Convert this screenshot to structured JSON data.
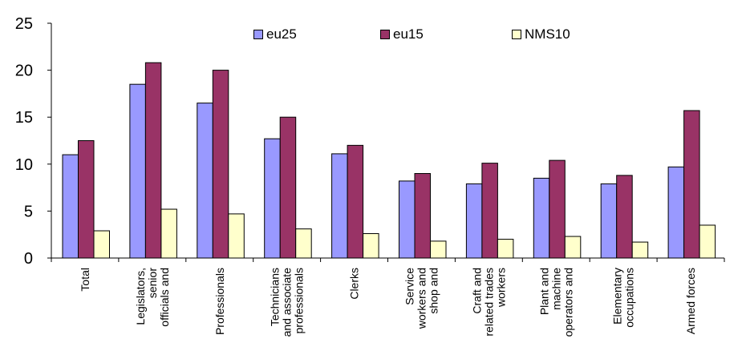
{
  "chart_data": {
    "type": "bar",
    "title": "",
    "xlabel": "",
    "ylabel": "",
    "ylim": [
      0,
      25
    ],
    "yticks": [
      0,
      5,
      10,
      15,
      20,
      25
    ],
    "grid": false,
    "legend_position": "top",
    "categories": [
      "Total",
      "Legislators, senior officials and",
      "Professionals",
      "Technicians and associate professionals",
      "Clerks",
      "Service workers and shop and",
      "Craft and related trades workers",
      "Plant and machine operators and",
      "Elementary occupations",
      "Armed forces"
    ],
    "category_lines": [
      [
        "Total"
      ],
      [
        "Legislators,",
        "senior",
        "officials and"
      ],
      [
        "Professionals"
      ],
      [
        "Technicians",
        "and associate",
        "professionals"
      ],
      [
        "Clerks"
      ],
      [
        "Service",
        "workers and",
        "shop and"
      ],
      [
        "Craft and",
        "related trades",
        "workers"
      ],
      [
        "Plant and",
        "machine",
        "operators and"
      ],
      [
        "Elementary",
        "occupations"
      ],
      [
        "Armed forces"
      ]
    ],
    "series": [
      {
        "name": "eu25",
        "color": "#9999ff",
        "values": [
          11.0,
          18.5,
          16.5,
          12.7,
          11.1,
          8.2,
          7.9,
          8.5,
          7.9,
          9.7
        ]
      },
      {
        "name": "eu15",
        "color": "#993366",
        "values": [
          12.5,
          20.8,
          20.0,
          15.0,
          12.0,
          9.0,
          10.1,
          10.4,
          8.8,
          15.7
        ]
      },
      {
        "name": "NMS10",
        "color": "#ffffcc",
        "values": [
          2.9,
          5.2,
          4.7,
          3.1,
          2.6,
          1.8,
          2.0,
          2.3,
          1.7,
          3.5
        ]
      }
    ]
  }
}
